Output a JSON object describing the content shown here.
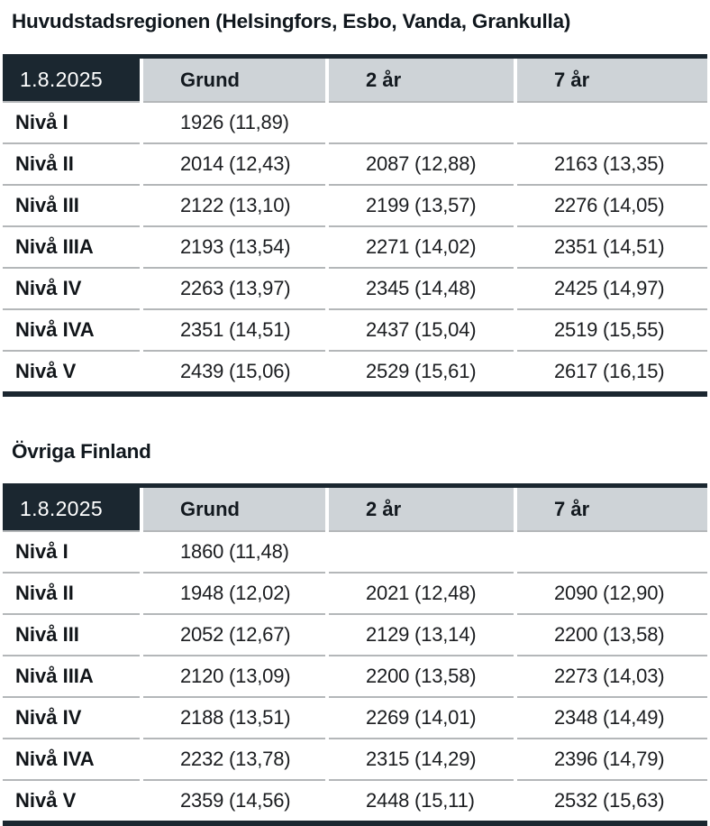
{
  "colors": {
    "dark_navy": "#1b2730",
    "header_gray": "#ced3d7",
    "row_separator": "#b4b7b9",
    "background": "#ffffff",
    "date_text": "#ffffff",
    "body_text": "#1a1c1f"
  },
  "tables": [
    {
      "title": "Huvudstadsregionen (Helsingfors, Esbo, Vanda, Grankulla)",
      "date": "1.8.2025",
      "columns": [
        "Grund",
        "2 år",
        "7 år"
      ],
      "rows": [
        {
          "label": "Nivå I",
          "values": [
            "1926 (11,89)",
            "",
            ""
          ]
        },
        {
          "label": "Nivå II",
          "values": [
            "2014 (12,43)",
            "2087 (12,88)",
            "2163 (13,35)"
          ]
        },
        {
          "label": "Nivå III",
          "values": [
            "2122 (13,10)",
            "2199 (13,57)",
            "2276 (14,05)"
          ]
        },
        {
          "label": "Nivå IIIA",
          "values": [
            "2193 (13,54)",
            "2271 (14,02)",
            "2351 (14,51)"
          ]
        },
        {
          "label": "Nivå IV",
          "values": [
            "2263 (13,97)",
            "2345 (14,48)",
            "2425 (14,97)"
          ]
        },
        {
          "label": "Nivå IVA",
          "values": [
            "2351 (14,51)",
            "2437 (15,04)",
            "2519 (15,55)"
          ]
        },
        {
          "label": "Nivå V",
          "values": [
            "2439 (15,06)",
            "2529 (15,61)",
            "2617 (16,15)"
          ]
        }
      ]
    },
    {
      "title": "Övriga Finland",
      "date": "1.8.2025",
      "columns": [
        "Grund",
        "2 år",
        "7 år"
      ],
      "rows": [
        {
          "label": "Nivå I",
          "values": [
            "1860 (11,48)",
            "",
            ""
          ]
        },
        {
          "label": "Nivå II",
          "values": [
            "1948 (12,02)",
            "2021 (12,48)",
            "2090 (12,90)"
          ]
        },
        {
          "label": "Nivå III",
          "values": [
            "2052 (12,67)",
            "2129 (13,14)",
            "2200 (13,58)"
          ]
        },
        {
          "label": "Nivå IIIA",
          "values": [
            "2120 (13,09)",
            "2200 (13,58)",
            "2273 (14,03)"
          ]
        },
        {
          "label": "Nivå IV",
          "values": [
            "2188 (13,51)",
            "2269 (14,01)",
            "2348 (14,49)"
          ]
        },
        {
          "label": "Nivå IVA",
          "values": [
            "2232 (13,78)",
            "2315 (14,29)",
            "2396 (14,79)"
          ]
        },
        {
          "label": "Nivå V",
          "values": [
            "2359 (14,56)",
            "2448 (15,11)",
            "2532 (15,63)"
          ]
        }
      ]
    }
  ]
}
